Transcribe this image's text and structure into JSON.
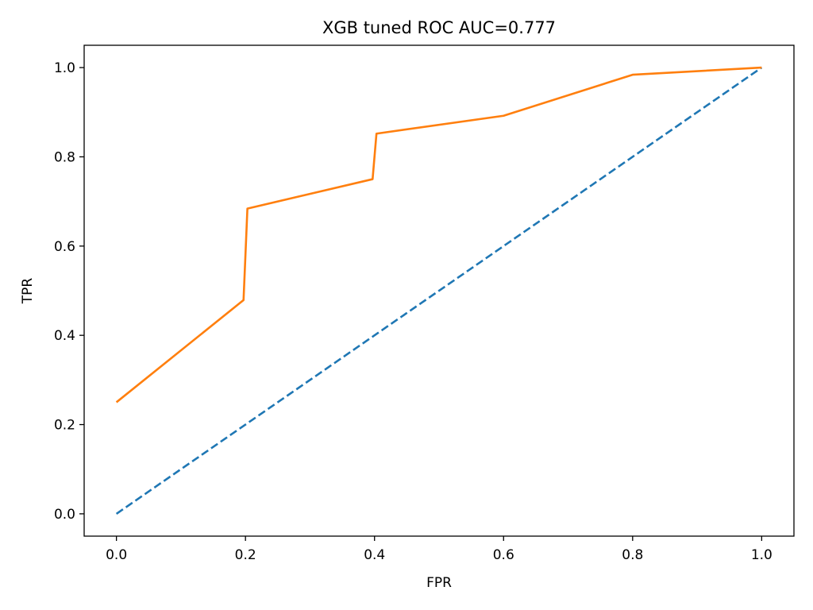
{
  "chart_data": {
    "type": "line",
    "title": "XGB tuned ROC AUC=0.777",
    "xlabel": "FPR",
    "ylabel": "TPR",
    "xlim": [
      -0.05,
      1.05
    ],
    "ylim": [
      -0.05,
      1.05
    ],
    "xticks": [
      0.0,
      0.2,
      0.4,
      0.6,
      0.8,
      1.0
    ],
    "yticks": [
      0.0,
      0.2,
      0.4,
      0.6,
      0.8,
      1.0
    ],
    "xtick_labels": [
      "0.0",
      "0.2",
      "0.4",
      "0.6",
      "0.8",
      "1.0"
    ],
    "ytick_labels": [
      "0.0",
      "0.2",
      "0.4",
      "0.6",
      "0.8",
      "1.0"
    ],
    "grid": false,
    "legend": "none",
    "series": [
      {
        "style": "dashed",
        "color": "#1f77b4",
        "x": [
          0.0,
          1.0
        ],
        "y": [
          0.0,
          1.0
        ]
      },
      {
        "style": "solid",
        "color": "#ff7f0e",
        "x": [
          0.0,
          0.197,
          0.203,
          0.397,
          0.403,
          0.6,
          0.8,
          1.0
        ],
        "y": [
          0.25,
          0.479,
          0.684,
          0.75,
          0.852,
          0.892,
          0.984,
          1.0
        ]
      }
    ]
  }
}
